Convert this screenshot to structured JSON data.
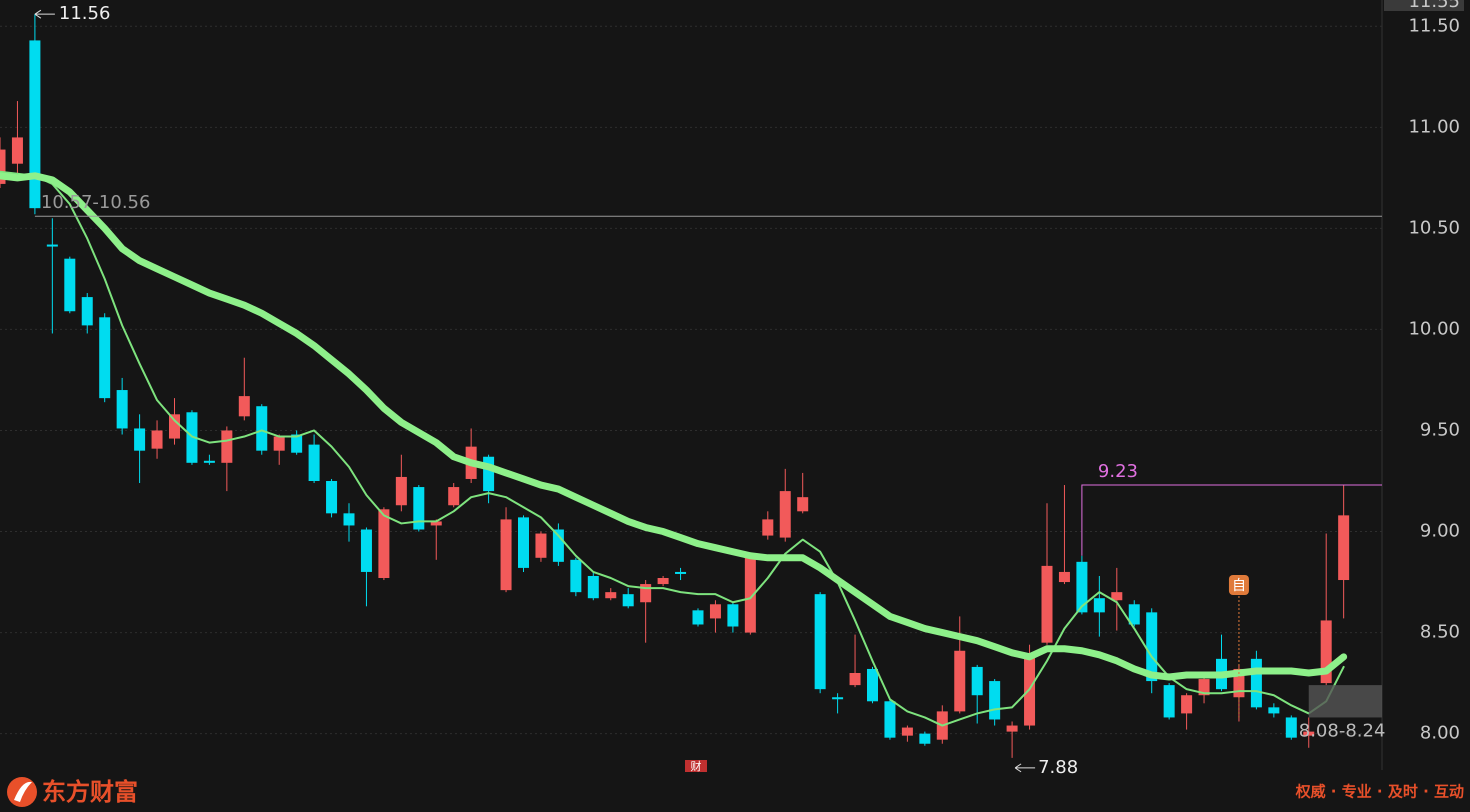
{
  "chart_data": {
    "type": "candlestick",
    "open": [
      10.72,
      10.82,
      11.43,
      10.42,
      10.35,
      10.16,
      10.06,
      9.7,
      9.51,
      9.41,
      9.46,
      9.59,
      9.35,
      9.34,
      9.57,
      9.62,
      9.4,
      9.48,
      9.43,
      9.25,
      9.09,
      9.01,
      8.77,
      9.13,
      9.22,
      9.03,
      9.13,
      9.26,
      9.37,
      8.71,
      9.07,
      8.87,
      9.01,
      8.86,
      8.78,
      8.67,
      8.69,
      8.65,
      8.74,
      8.8,
      8.61,
      8.57,
      8.64,
      8.5,
      8.98,
      8.97,
      9.1,
      8.69,
      8.18,
      8.24,
      8.32,
      8.16,
      7.99,
      8.0,
      7.97,
      8.11,
      8.33,
      8.26,
      8.01,
      8.04,
      8.45,
      8.75,
      8.85,
      8.67,
      8.66,
      8.64,
      8.6,
      8.24,
      8.1,
      8.19,
      8.37,
      8.18,
      8.37,
      8.13,
      8.08,
      7.99,
      8.25,
      8.76
    ],
    "close": [
      10.89,
      10.95,
      10.6,
      10.41,
      10.09,
      10.02,
      9.66,
      9.51,
      9.4,
      9.5,
      9.58,
      9.34,
      9.34,
      9.5,
      9.67,
      9.4,
      9.47,
      9.39,
      9.25,
      9.09,
      9.03,
      8.8,
      9.11,
      9.27,
      9.01,
      9.05,
      9.22,
      9.42,
      9.2,
      9.06,
      8.82,
      8.99,
      8.85,
      8.7,
      8.67,
      8.7,
      8.63,
      8.74,
      8.77,
      8.79,
      8.54,
      8.64,
      8.53,
      8.87,
      9.06,
      9.2,
      9.17,
      8.22,
      8.17,
      8.3,
      8.16,
      7.98,
      8.03,
      7.95,
      8.11,
      8.41,
      8.19,
      8.07,
      8.04,
      8.38,
      8.83,
      8.8,
      8.6,
      8.6,
      8.7,
      8.54,
      8.26,
      8.08,
      8.19,
      8.27,
      8.22,
      8.32,
      8.13,
      8.1,
      7.98,
      8.01,
      8.56,
      9.08
    ],
    "high": [
      10.95,
      11.13,
      11.56,
      10.55,
      10.36,
      10.18,
      10.08,
      9.76,
      9.58,
      9.55,
      9.66,
      9.6,
      9.38,
      9.52,
      9.86,
      9.63,
      9.48,
      9.5,
      9.48,
      9.26,
      9.14,
      9.02,
      9.12,
      9.38,
      9.23,
      9.06,
      9.24,
      9.51,
      9.38,
      9.12,
      9.08,
      9.0,
      9.04,
      8.87,
      8.8,
      8.72,
      8.72,
      8.76,
      8.78,
      8.82,
      8.62,
      8.66,
      8.65,
      8.88,
      9.1,
      9.31,
      9.29,
      8.7,
      8.2,
      8.49,
      8.33,
      8.17,
      8.04,
      8.01,
      8.14,
      8.58,
      8.34,
      8.27,
      8.06,
      8.44,
      9.14,
      9.23,
      8.88,
      8.78,
      8.82,
      8.66,
      8.62,
      8.25,
      8.2,
      8.28,
      8.49,
      8.34,
      8.41,
      8.15,
      8.09,
      8.08,
      8.99,
      9.23
    ],
    "low": [
      10.7,
      10.77,
      10.57,
      9.98,
      10.08,
      9.98,
      9.64,
      9.48,
      9.24,
      9.36,
      9.43,
      9.33,
      9.33,
      9.2,
      9.55,
      9.38,
      9.33,
      9.38,
      9.24,
      9.07,
      8.95,
      8.63,
      8.76,
      9.1,
      9.0,
      8.86,
      9.12,
      9.24,
      9.14,
      8.7,
      8.8,
      8.85,
      8.83,
      8.68,
      8.66,
      8.66,
      8.62,
      8.45,
      8.73,
      8.76,
      8.53,
      8.5,
      8.5,
      8.49,
      8.96,
      8.95,
      9.09,
      8.2,
      8.1,
      8.23,
      8.15,
      7.97,
      7.96,
      7.94,
      7.95,
      8.1,
      8.05,
      8.04,
      7.88,
      8.02,
      8.44,
      8.74,
      8.59,
      8.48,
      8.51,
      8.53,
      8.2,
      8.07,
      8.02,
      8.15,
      8.21,
      8.06,
      8.12,
      8.08,
      7.97,
      7.93,
      8.24,
      8.57
    ],
    "up_color": "#f25a5a",
    "down_color": "#00dcf0",
    "series": [
      {
        "color": "#7ee37e",
        "width": 2,
        "values": [
          10.78,
          10.77,
          10.76,
          10.72,
          10.62,
          10.45,
          10.25,
          10.02,
          9.83,
          9.65,
          9.55,
          9.47,
          9.44,
          9.45,
          9.47,
          9.5,
          9.47,
          9.47,
          9.5,
          9.42,
          9.32,
          9.18,
          9.08,
          9.04,
          9.05,
          9.05,
          9.1,
          9.17,
          9.19,
          9.17,
          9.12,
          9.07,
          8.98,
          8.88,
          8.8,
          8.77,
          8.73,
          8.72,
          8.72,
          8.7,
          8.69,
          8.69,
          8.65,
          8.67,
          8.77,
          8.89,
          8.96,
          8.9,
          8.75,
          8.56,
          8.36,
          8.17,
          8.11,
          8.08,
          8.04,
          8.07,
          8.1,
          8.12,
          8.13,
          8.22,
          8.36,
          8.52,
          8.63,
          8.7,
          8.65,
          8.52,
          8.38,
          8.28,
          8.22,
          8.2,
          8.2,
          8.21,
          8.21,
          8.19,
          8.14,
          8.1,
          8.16,
          8.33
        ]
      },
      {
        "color": "#8ef08a",
        "width": 7,
        "values": [
          10.76,
          10.75,
          10.76,
          10.74,
          10.68,
          10.59,
          10.5,
          10.4,
          10.34,
          10.3,
          10.26,
          10.22,
          10.18,
          10.15,
          10.12,
          10.08,
          10.03,
          9.98,
          9.92,
          9.85,
          9.78,
          9.7,
          9.61,
          9.54,
          9.49,
          9.44,
          9.37,
          9.34,
          9.32,
          9.29,
          9.26,
          9.23,
          9.21,
          9.17,
          9.13,
          9.09,
          9.05,
          9.02,
          9.0,
          8.97,
          8.94,
          8.92,
          8.9,
          8.88,
          8.87,
          8.87,
          8.87,
          8.82,
          8.76,
          8.7,
          8.64,
          8.58,
          8.55,
          8.52,
          8.5,
          8.48,
          8.46,
          8.43,
          8.4,
          8.38,
          8.42,
          8.42,
          8.41,
          8.39,
          8.36,
          8.32,
          8.29,
          8.28,
          8.29,
          8.29,
          8.29,
          8.3,
          8.31,
          8.31,
          8.31,
          8.3,
          8.31,
          8.38
        ]
      }
    ],
    "ylim": [
      7.82,
      11.63
    ],
    "yticks": [
      {
        "value": 8,
        "label": "8.00"
      },
      {
        "value": 8.5,
        "label": "8.50"
      },
      {
        "value": 9,
        "label": "9.00"
      },
      {
        "value": 9.5,
        "label": "9.50"
      },
      {
        "value": 10,
        "label": "10.00"
      },
      {
        "value": 10.5,
        "label": "10.50"
      },
      {
        "value": 11,
        "label": "11.00"
      },
      {
        "value": 11.5,
        "label": "11.50"
      }
    ],
    "grid": true,
    "top_label": "11.55",
    "high_label": {
      "label": "11.56",
      "value": 11.56,
      "index": 2
    },
    "low_label": {
      "label": "7.88",
      "value": 7.88,
      "index": 58
    },
    "range_line": {
      "label": "10.57-10.56",
      "value": 10.56,
      "index": 2,
      "color": "#9a9a9a"
    },
    "level_line": {
      "label": "9.23",
      "value": 9.23,
      "index": 62,
      "color": "#e070e0"
    },
    "range_box": {
      "label": "8.08-8.24",
      "low": 8.08,
      "high": 8.24,
      "index": 75
    },
    "marker": {
      "label": "自",
      "index": 71
    },
    "news_icon": "财",
    "logo": "东方财富",
    "slogan": "权威 · 专业 · 及时 · 互动"
  }
}
